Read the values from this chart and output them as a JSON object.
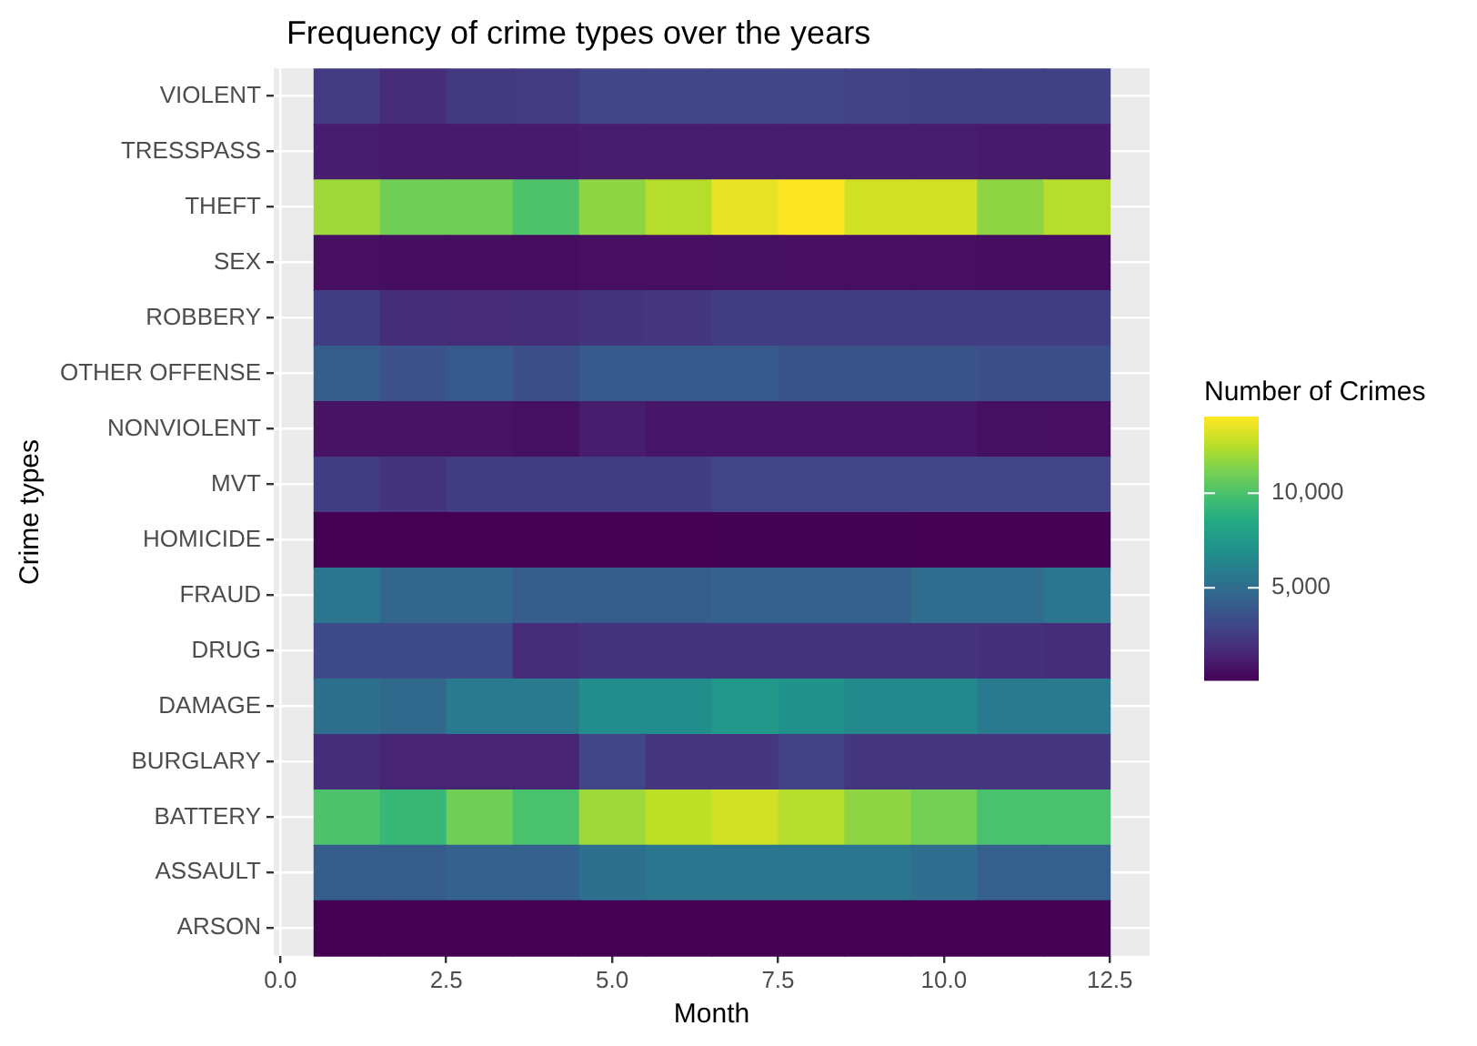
{
  "chart_data": {
    "type": "heatmap",
    "title": "Frequency of crime types over the years",
    "xlabel": "Month",
    "ylabel": "Crime types",
    "clabel": "Number of Crimes",
    "x": [
      1,
      2,
      3,
      4,
      5,
      6,
      7,
      8,
      9,
      10,
      11,
      12
    ],
    "xlim": [
      -0.1,
      13.1
    ],
    "xticks": [
      {
        "value": 0,
        "label": "0.0"
      },
      {
        "value": 2.5,
        "label": "2.5"
      },
      {
        "value": 5,
        "label": "5.0"
      },
      {
        "value": 7.5,
        "label": "7.5"
      },
      {
        "value": 10,
        "label": "10.0"
      },
      {
        "value": 12.5,
        "label": "12.5"
      }
    ],
    "y_categories": [
      "VIOLENT",
      "TRESSPASS",
      "THEFT",
      "SEX",
      "ROBBERY",
      "OTHER OFFENSE",
      "NONVIOLENT",
      "MVT",
      "HOMICIDE",
      "FRAUD",
      "DRUG",
      "DAMAGE",
      "BURGLARY",
      "BATTERY",
      "ASSAULT",
      "ARSON"
    ],
    "cells": [
      [
        2500,
        1900,
        2400,
        2500,
        3000,
        3000,
        3000,
        3000,
        2800,
        2700,
        2700,
        2700
      ],
      [
        1200,
        1100,
        1100,
        1100,
        1200,
        1200,
        1200,
        1200,
        1200,
        1200,
        1100,
        1100
      ],
      [
        12000,
        11000,
        11000,
        10100,
        11700,
        12500,
        13600,
        14050,
        13100,
        13100,
        11700,
        12500
      ],
      [
        650,
        600,
        600,
        550,
        650,
        650,
        700,
        650,
        650,
        650,
        600,
        600
      ],
      [
        2600,
        1900,
        1800,
        1900,
        2200,
        2300,
        2600,
        2600,
        2600,
        2600,
        2600,
        2600
      ],
      [
        4150,
        3600,
        4000,
        3450,
        4000,
        4000,
        4000,
        3700,
        3700,
        3700,
        3450,
        3450
      ],
      [
        800,
        800,
        800,
        700,
        1200,
        950,
        950,
        950,
        950,
        950,
        700,
        650
      ],
      [
        2600,
        2200,
        2600,
        2600,
        2600,
        2600,
        2900,
        2900,
        2900,
        2900,
        2900,
        2900
      ],
      [
        100,
        100,
        100,
        100,
        100,
        100,
        150,
        150,
        150,
        100,
        100,
        100
      ],
      [
        5550,
        4700,
        4700,
        4150,
        4150,
        4150,
        4400,
        4400,
        4400,
        5000,
        5000,
        5550
      ],
      [
        3300,
        3300,
        3300,
        1900,
        2200,
        2200,
        2200,
        2200,
        2200,
        2200,
        2000,
        1900
      ],
      [
        5250,
        4850,
        5800,
        5800,
        6900,
        6900,
        7500,
        7100,
        6650,
        6650,
        5800,
        5800
      ],
      [
        1900,
        1500,
        1500,
        1500,
        3000,
        2300,
        2300,
        2750,
        2300,
        2300,
        2300,
        2300
      ],
      [
        10100,
        9400,
        11000,
        10000,
        12000,
        12650,
        13100,
        12500,
        11700,
        11100,
        10000,
        10000
      ],
      [
        4150,
        4150,
        4400,
        4400,
        5250,
        5550,
        5550,
        5550,
        5550,
        5100,
        4300,
        4300
      ],
      [
        100,
        100,
        100,
        100,
        100,
        100,
        100,
        100,
        100,
        100,
        100,
        100
      ]
    ],
    "clim": [
      100,
      14050
    ],
    "cticks": [
      {
        "value": 5000,
        "label": "5,000"
      },
      {
        "value": 10000,
        "label": "10,000"
      }
    ],
    "grid": true
  }
}
